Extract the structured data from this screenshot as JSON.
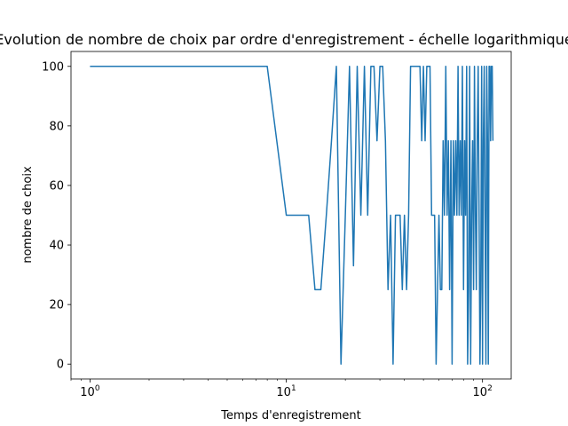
{
  "chart_data": {
    "type": "line",
    "title": "Evolution de nombre de choix par ordre d'enregistrement - échelle logarithmique",
    "xlabel": "Temps d'enregistrement",
    "ylabel": "nombre de choix",
    "x_scale": "log",
    "xlim": [
      0.8,
      140
    ],
    "ylim": [
      -5,
      105
    ],
    "grid": false,
    "line_color": "#1f77b4",
    "x_ticks": [
      {
        "base": "10",
        "exp": "0",
        "value": 1
      },
      {
        "base": "10",
        "exp": "1",
        "value": 10
      },
      {
        "base": "10",
        "exp": "2",
        "value": 100
      }
    ],
    "y_ticks": [
      "0",
      "20",
      "40",
      "60",
      "80",
      "100"
    ],
    "series": [
      {
        "x": [
          1,
          2,
          3,
          4,
          5,
          6,
          7,
          8,
          10,
          11,
          12,
          13,
          14,
          15,
          16,
          17,
          18,
          19,
          20,
          21,
          22,
          23,
          24,
          25,
          26,
          27,
          28,
          29,
          30,
          31,
          32,
          33,
          34,
          35,
          36,
          37,
          38,
          39,
          40,
          41,
          42,
          43,
          44,
          45,
          46,
          47,
          48,
          49,
          50,
          51,
          52,
          53,
          54,
          55,
          56,
          57,
          58,
          59,
          60,
          61,
          62,
          63,
          64,
          65,
          66,
          67,
          68,
          69,
          70,
          71,
          72,
          73,
          74,
          75,
          76,
          77,
          78,
          79,
          80,
          81,
          82,
          83,
          84,
          85,
          86,
          87,
          88,
          89,
          90,
          91,
          92,
          93,
          94,
          95,
          96,
          97,
          98,
          99,
          100,
          101,
          102,
          103,
          104,
          105,
          106,
          107,
          108,
          109,
          110,
          111,
          112,
          113
        ],
        "y": [
          100,
          100,
          100,
          100,
          100,
          100,
          100,
          100,
          50,
          50,
          50,
          50,
          25,
          25,
          50,
          75,
          100,
          0,
          50,
          100,
          33,
          100,
          50,
          100,
          50,
          100,
          100,
          75,
          100,
          100,
          75,
          25,
          50,
          0,
          50,
          50,
          50,
          25,
          50,
          25,
          50,
          100,
          100,
          100,
          100,
          100,
          100,
          75,
          100,
          75,
          100,
          100,
          100,
          50,
          50,
          50,
          0,
          25,
          50,
          25,
          25,
          75,
          50,
          100,
          50,
          75,
          25,
          75,
          0,
          75,
          50,
          75,
          50,
          100,
          50,
          75,
          50,
          100,
          25,
          75,
          50,
          100,
          0,
          25,
          100,
          0,
          50,
          75,
          25,
          100,
          50,
          25,
          75,
          100,
          50,
          0,
          25,
          100,
          0,
          75,
          100,
          50,
          0,
          100,
          75,
          0,
          100,
          100,
          75,
          100,
          100,
          75
        ]
      }
    ]
  }
}
